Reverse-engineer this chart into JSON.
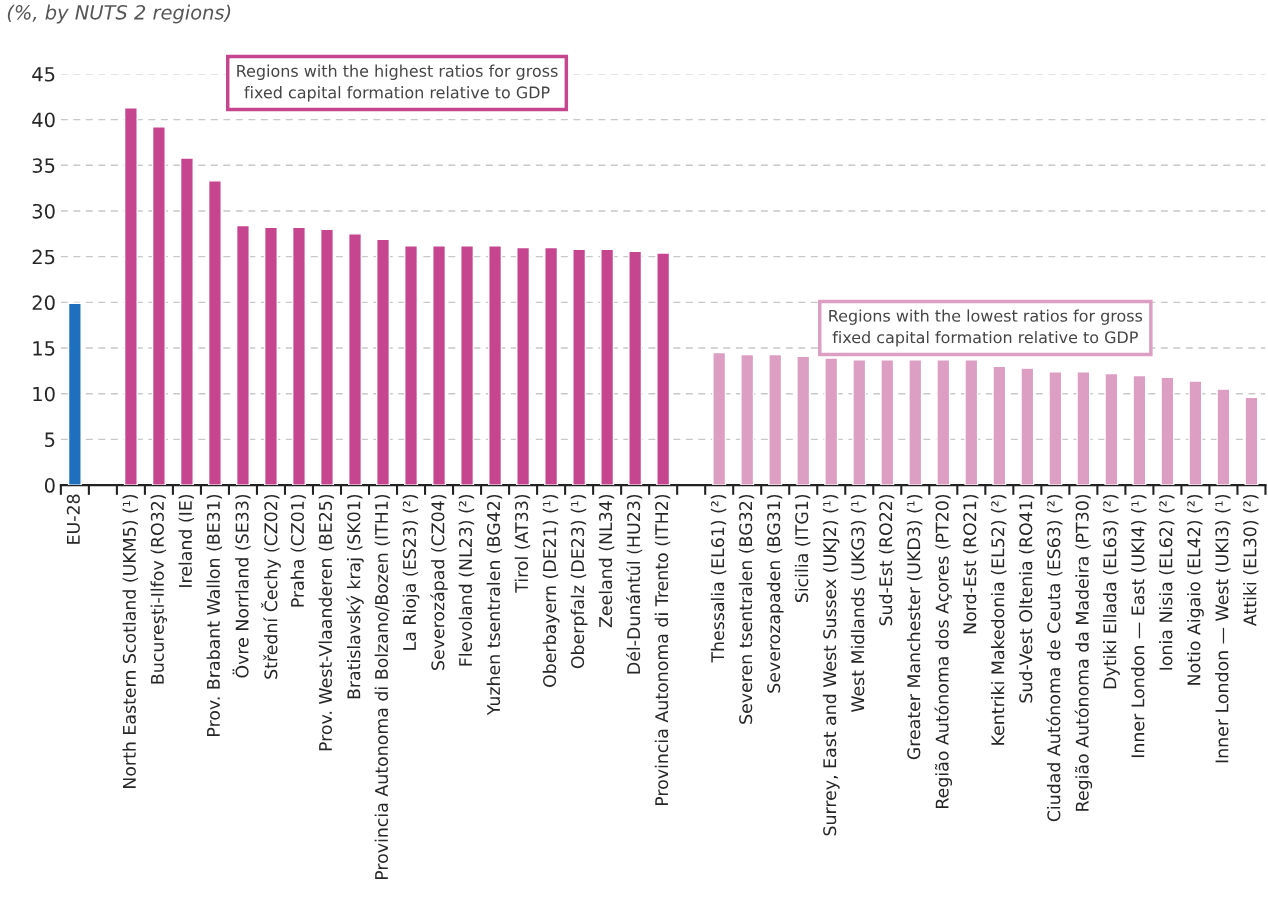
{
  "chart_data": {
    "type": "bar",
    "subtitle": "(%, by NUTS 2 regions)",
    "categories": [
      "EU-28",
      null,
      "North Eastern Scotland (UKM5) (¹)",
      "Bucureşti-Ilfov (RO32)",
      "Ireland (IE)",
      "Prov. Brabant Wallon (BE31)",
      "Övre Norrland (SE33)",
      "Střední Čechy (CZ02)",
      "Praha (CZ01)",
      "Prov. West-Vlaanderen (BE25)",
      "Bratislavský kraj (SK01)",
      "Provincia Autonoma di Bolzano/Bozen (ITH1)",
      "La Rioja (ES23) (²)",
      "Severozápad (CZ04)",
      "Flevoland (NL23) (²)",
      "Yuzhen tsentralen (BG42)",
      "Tirol (AT33)",
      "Oberbayern (DE21) (¹)",
      "Oberpfalz (DE23) (¹)",
      "Zeeland (NL34)",
      "Dél-Dunántúl (HU23)",
      "Provincia Autonoma di Trento (ITH2)",
      null,
      "Thessalia (EL61) (²)",
      "Severen tsentralen (BG32)",
      "Severozapaden (BG31)",
      "Sicilia (ITG1)",
      "Surrey, East and West Sussex (UKJ2) (¹)",
      "West Midlands (UKG3) (¹)",
      "Sud-Est (RO22)",
      "Greater Manchester (UKD3) (¹)",
      "Região Autónoma dos Açores (PT20)",
      "Nord-Est (RO21)",
      "Kentriki Makedonia (EL52) (²)",
      "Sud-Vest Oltenia (RO41)",
      "Ciudad Autónoma de Ceuta (ES63) (²)",
      "Região Autónoma da Madeira (PT30)",
      "Dytiki Ellada (EL63) (²)",
      "Inner London — East (UKI4) (¹)",
      "Ionia Nisia (EL62) (²)",
      "Notio Aigaio (EL42) (²)",
      "Inner London — West (UKI3) (¹)",
      "Attiki (EL30) (²)"
    ],
    "values": [
      19.9,
      null,
      41.3,
      39.2,
      35.8,
      33.3,
      28.4,
      28.2,
      28.2,
      28.0,
      27.5,
      26.9,
      26.2,
      26.2,
      26.2,
      26.2,
      26.0,
      26.0,
      25.8,
      25.8,
      25.6,
      25.4,
      null,
      14.5,
      14.3,
      14.3,
      14.1,
      13.9,
      13.7,
      13.7,
      13.7,
      13.7,
      13.7,
      13.0,
      12.8,
      12.4,
      12.4,
      12.2,
      12.0,
      11.8,
      11.4,
      10.5,
      9.6
    ],
    "colors": [
      "#1f6fbf",
      null,
      "#c5468f",
      "#c5468f",
      "#c5468f",
      "#c5468f",
      "#c5468f",
      "#c5468f",
      "#c5468f",
      "#c5468f",
      "#c5468f",
      "#c5468f",
      "#c5468f",
      "#c5468f",
      "#c5468f",
      "#c5468f",
      "#c5468f",
      "#c5468f",
      "#c5468f",
      "#c5468f",
      "#c5468f",
      "#c5468f",
      null,
      "#dc9fc3",
      "#dc9fc3",
      "#dc9fc3",
      "#dc9fc3",
      "#dc9fc3",
      "#dc9fc3",
      "#dc9fc3",
      "#dc9fc3",
      "#dc9fc3",
      "#dc9fc3",
      "#dc9fc3",
      "#dc9fc3",
      "#dc9fc3",
      "#dc9fc3",
      "#dc9fc3",
      "#dc9fc3",
      "#dc9fc3",
      "#dc9fc3",
      "#dc9fc3",
      "#dc9fc3"
    ],
    "annotations": [
      "Regions with the highest ratios for gross fixed capital formation relative to GDP",
      "Regions with the lowest ratios for gross fixed capital formation relative to GDP"
    ],
    "ylim": [
      0,
      45
    ],
    "yticks": [
      0,
      5,
      10,
      15,
      20,
      25,
      30,
      35,
      40,
      45
    ],
    "grid": "y",
    "legend": false
  }
}
